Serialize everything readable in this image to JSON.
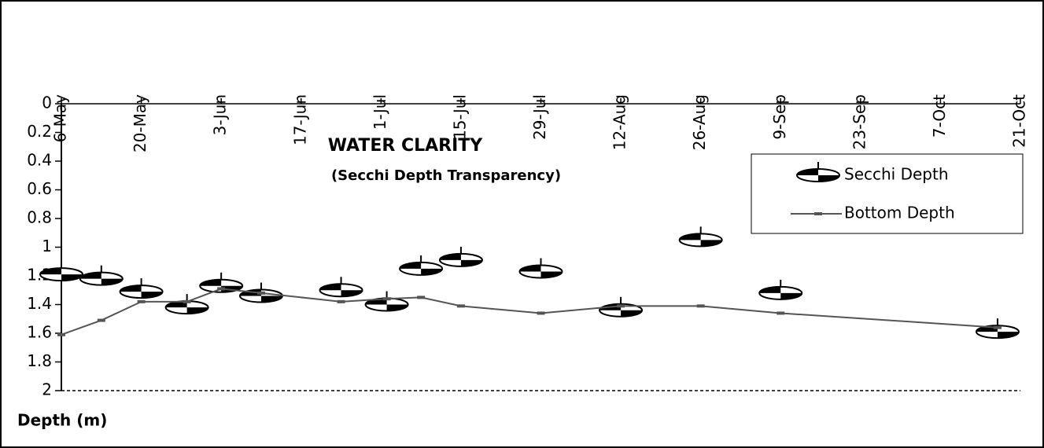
{
  "chart_data": {
    "type": "line",
    "title": "WATER CLARITY",
    "subtitle": "(Secchi Depth Transparency)",
    "y_label": "Depth (m)",
    "x": [
      "6-May",
      "13-May",
      "20-May",
      "28-May",
      "3-Jun",
      "10-Jun",
      "24-Jun",
      "2-Jul",
      "8-Jul",
      "15-Jul",
      "29-Jul",
      "12-Aug",
      "26-Aug",
      "9-Sep",
      "17-Oct"
    ],
    "series": [
      {
        "name": "Secchi Depth",
        "color": "#000000",
        "marker": "secchi",
        "values": [
          1.19,
          1.22,
          1.31,
          1.42,
          1.27,
          1.34,
          1.3,
          1.4,
          1.15,
          1.09,
          1.17,
          1.44,
          0.95,
          1.32,
          1.59
        ]
      },
      {
        "name": "Bottom Depth",
        "color": "#555555",
        "marker": "line",
        "values": [
          1.61,
          1.51,
          1.38,
          1.38,
          1.29,
          1.32,
          1.38,
          1.36,
          1.35,
          1.41,
          1.46,
          1.41,
          1.41,
          1.46,
          1.56
        ]
      }
    ],
    "xlim": [
      "6-May",
      "21-Oct"
    ],
    "xticks": [
      "6-May",
      "20-May",
      "3-Jun",
      "17-Jun",
      "1-Jul",
      "15-Jul",
      "29-Jul",
      "12-Aug",
      "26-Aug",
      "9-Sep",
      "23-Sep",
      "7-Oct",
      "21-Oct"
    ],
    "ylim": [
      0,
      2
    ],
    "yticks": [
      0,
      0.2,
      0.4,
      0.6,
      0.8,
      1,
      1.2,
      1.4,
      1.6,
      1.8,
      2
    ],
    "y_reversed": true,
    "legend": "right"
  }
}
